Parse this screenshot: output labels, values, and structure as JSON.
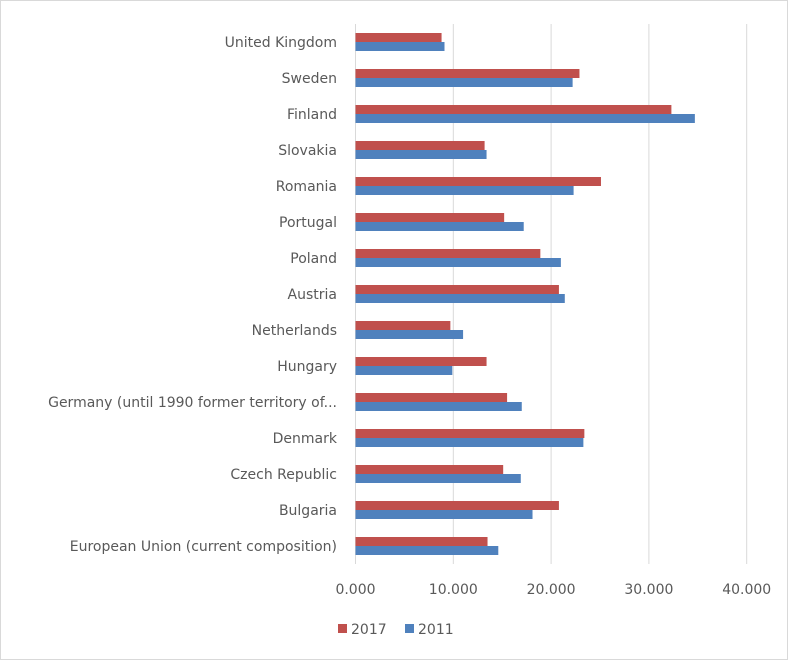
{
  "chart_data": {
    "type": "bar",
    "orientation": "horizontal",
    "title": "",
    "xlabel": "",
    "ylabel": "",
    "xlim": [
      0,
      40
    ],
    "x_ticks": [
      "0.000",
      "10.000",
      "20.000",
      "30.000",
      "40.000"
    ],
    "x_tick_values": [
      0,
      10,
      20,
      30,
      40
    ],
    "grid": true,
    "legend_position": "bottom",
    "categories": [
      "United Kingdom",
      "Sweden",
      "Finland",
      "Slovakia",
      "Romania",
      "Portugal",
      "Poland",
      "Austria",
      "Netherlands",
      "Hungary",
      "Germany (until 1990 former territory of...",
      "Denmark",
      "Czech Republic",
      "Bulgaria",
      "European Union (current composition)"
    ],
    "series": [
      {
        "name": "2017",
        "color": "#c0504d",
        "values": [
          8.8,
          22.9,
          32.3,
          13.2,
          25.1,
          15.2,
          18.9,
          20.8,
          9.7,
          13.4,
          15.5,
          23.4,
          15.1,
          20.8,
          13.5
        ]
      },
      {
        "name": "2011",
        "color": "#4f81bd",
        "values": [
          9.1,
          22.2,
          34.7,
          13.4,
          22.3,
          17.2,
          21.0,
          21.4,
          11.0,
          9.9,
          17.0,
          23.3,
          16.9,
          18.1,
          14.6
        ]
      }
    ]
  }
}
